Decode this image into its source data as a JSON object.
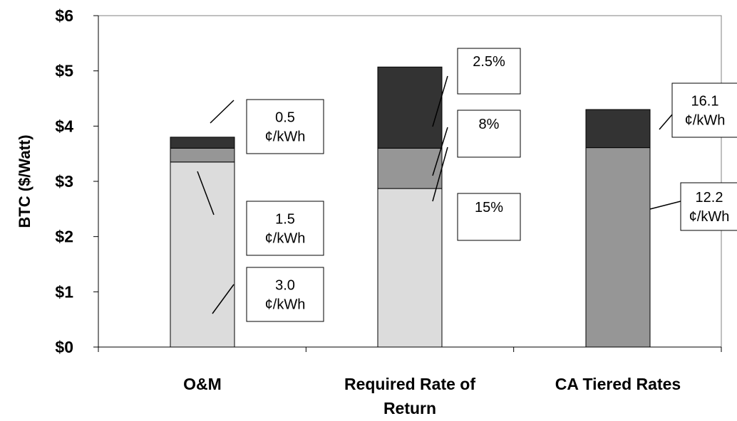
{
  "chart_data": {
    "type": "bar",
    "stacked": true,
    "ylabel": "BTC ($/Watt)",
    "ylim": [
      0,
      6
    ],
    "ytick_labels": [
      "$0",
      "$1",
      "$2",
      "$3",
      "$4",
      "$5",
      "$6"
    ],
    "categories": [
      {
        "label_lines": [
          "O&M"
        ]
      },
      {
        "label_lines": [
          "Required Rate of",
          "Return"
        ]
      },
      {
        "label_lines": [
          "CA Tiered Rates"
        ]
      }
    ],
    "segment_colors": [
      "#dcdcdc",
      "#969696",
      "#333333"
    ],
    "stacks": [
      [
        {
          "value": 3.35,
          "color": "#dcdcdc",
          "label_lines": [
            "3.0",
            "¢/kWh"
          ]
        },
        {
          "value": 0.25,
          "color": "#969696",
          "label_lines": [
            "1.5",
            "¢/kWh"
          ]
        },
        {
          "value": 0.2,
          "color": "#333333",
          "label_lines": [
            "0.5",
            "¢/kWh"
          ]
        }
      ],
      [
        {
          "value": 2.87,
          "color": "#dcdcdc",
          "label_lines": [
            "15%"
          ]
        },
        {
          "value": 0.73,
          "color": "#969696",
          "label_lines": [
            "8%"
          ]
        },
        {
          "value": 1.47,
          "color": "#333333",
          "label_lines": [
            "2.5%"
          ]
        }
      ],
      [
        {
          "value": 0,
          "color": "#dcdcdc",
          "label_lines": []
        },
        {
          "value": 3.61,
          "color": "#969696",
          "label_lines": [
            "12.2",
            "¢/kWh"
          ]
        },
        {
          "value": 0.69,
          "color": "#333333",
          "label_lines": [
            "16.1",
            "¢/kWh"
          ]
        }
      ]
    ]
  }
}
